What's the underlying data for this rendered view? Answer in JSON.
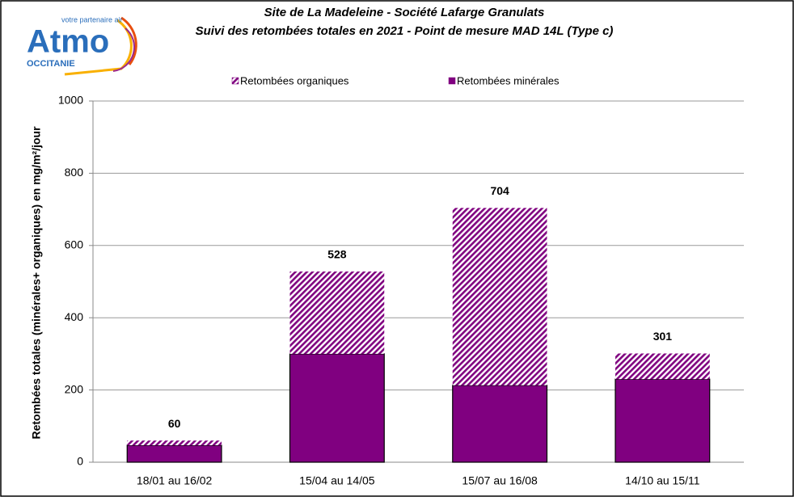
{
  "logo": {
    "tagline": "votre partenaire air",
    "name": "Atmo",
    "region": "OCCITANIE"
  },
  "chart_data": {
    "type": "stacked_bar",
    "title": "Site de La Madeleine - Société Lafarge Granulats",
    "subtitle": "Suivi des retombées totales en 2021 - Point de mesure MAD 14L (Type c)",
    "y_label": "Retombées totales (minérales+ organiques) en mg/m²/jour",
    "categories": [
      "18/01 au 16/02",
      "15/04 au 14/05",
      "15/07 au 16/08",
      "14/10 au 15/11"
    ],
    "series": [
      {
        "name": "Retombées minérales",
        "color": "#800080",
        "fill": "solid",
        "values": [
          47,
          300,
          213,
          230
        ]
      },
      {
        "name": "Retombées organiques",
        "color": "#800080",
        "fill": "hatch",
        "values": [
          13,
          228,
          491,
          71
        ]
      }
    ],
    "totals": [
      60,
      528,
      704,
      301
    ],
    "ylim": [
      0,
      1000
    ],
    "yticks": [
      0,
      200,
      400,
      600,
      800,
      1000
    ],
    "grid": true,
    "legend": "top"
  }
}
